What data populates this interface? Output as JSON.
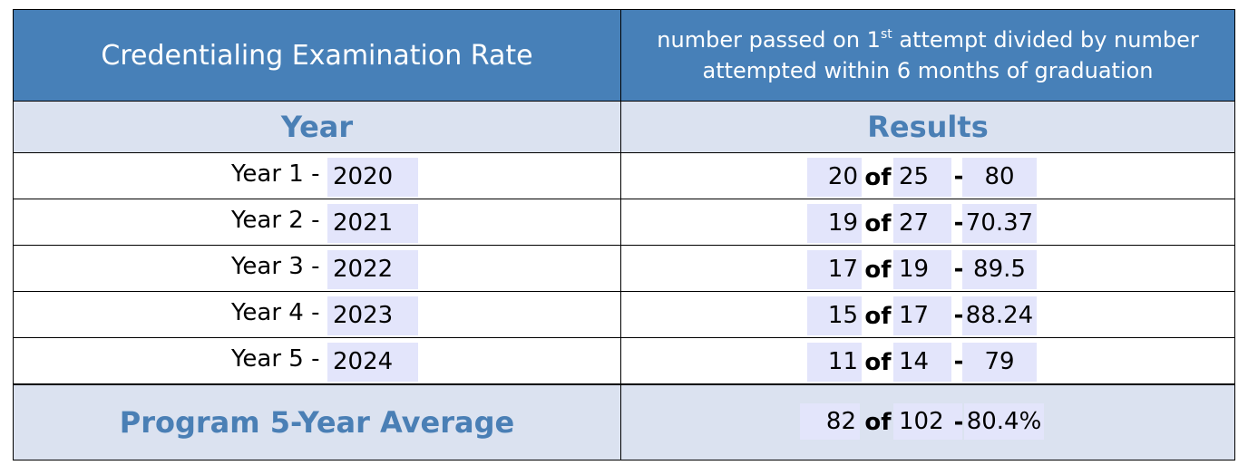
{
  "header": {
    "title": "Credentialing Examination Rate",
    "description_prefix": "number passed on 1",
    "description_sup": "st",
    "description_suffix": " attempt divided by number attempted within 6 months of graduation"
  },
  "columns": {
    "year": "Year",
    "results": "Results"
  },
  "of_label": "of",
  "dash": "-",
  "rows": [
    {
      "label": "Year 1 -",
      "year": "2020",
      "passed": "20",
      "attempted": "25",
      "rate": "80"
    },
    {
      "label": "Year 2 -",
      "year": "2021",
      "passed": "19",
      "attempted": "27",
      "rate": "70.37"
    },
    {
      "label": "Year 3 -",
      "year": "2022",
      "passed": "17",
      "attempted": "19",
      "rate": "89.5"
    },
    {
      "label": "Year 4 -",
      "year": "2023",
      "passed": "15",
      "attempted": "17",
      "rate": "88.24"
    },
    {
      "label": "Year 5 -",
      "year": "2024",
      "passed": "11",
      "attempted": "14",
      "rate": "79"
    }
  ],
  "average": {
    "label": "Program 5-Year Average",
    "passed": "82",
    "attempted": "102",
    "rate": "80.4%"
  }
}
